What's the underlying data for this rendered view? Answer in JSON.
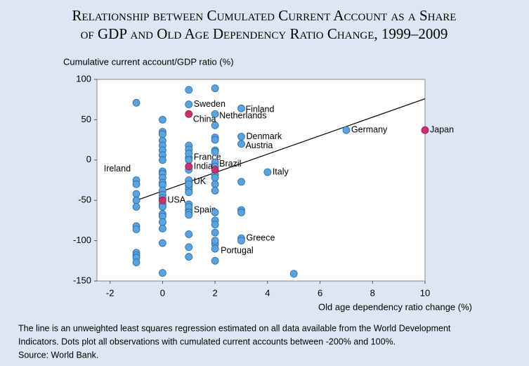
{
  "chart_data": {
    "type": "scatter",
    "title": [
      "Relationship between Cumulated Current Account as a Share",
      "of GDP and Old Age Dependency Ratio Change, 1999–2009"
    ],
    "y_label": "Cumulative current account/GDP ratio (%)",
    "x_label": "Old age dependency ratio change (%)",
    "note": [
      "The line is an unweighted least squares regression estimated on all data available from the World Development",
      "Indicators. Dots plot all observations with cumulated current accounts between -200% and 100%."
    ],
    "source": "Source: World Bank.",
    "xlim": [
      -2.5,
      10
    ],
    "xticks": [
      -2,
      0,
      2,
      4,
      6,
      8,
      10
    ],
    "ylim": [
      -150,
      100
    ],
    "yticks": [
      -150,
      -100,
      -50,
      0,
      50,
      100
    ],
    "series": [
      {
        "color": "#5aa3dc",
        "x": [
          1,
          3,
          2,
          7,
          3,
          3,
          1,
          -1,
          4,
          1,
          1,
          3,
          2,
          -1,
          -1,
          -1,
          -1,
          -1,
          -1,
          -1,
          -1,
          -1,
          -1,
          -1,
          0,
          0,
          0,
          0,
          0,
          0,
          0,
          0,
          0,
          0,
          0,
          0,
          0,
          0,
          0,
          0,
          0,
          0,
          0,
          0,
          0,
          0,
          0,
          0,
          1,
          1,
          1,
          1,
          1,
          1,
          1,
          1,
          1,
          1,
          1,
          1,
          1,
          1,
          1,
          1,
          1,
          1,
          2,
          2,
          2,
          2,
          2,
          2,
          2,
          2,
          2,
          2,
          2,
          2,
          2,
          2,
          2,
          2,
          2,
          2,
          2,
          3,
          3,
          3,
          3,
          5
        ],
        "values": [
          69,
          64,
          57,
          37,
          29,
          20,
          3,
          -25,
          -15,
          -27,
          -62,
          -97,
          -104,
          71,
          -30,
          -42,
          -50,
          -58,
          -82,
          -86,
          -115,
          -118,
          -121,
          -127,
          50,
          35,
          32,
          24,
          18,
          12,
          6,
          0,
          -14,
          -17,
          -22,
          -28,
          -31,
          -38,
          -43,
          -47,
          -55,
          -58,
          -67,
          -70,
          -77,
          -85,
          -103,
          -140,
          87,
          18,
          13,
          8,
          0,
          -12,
          -25,
          -32,
          -36,
          -40,
          -55,
          -58,
          -65,
          -68,
          -92,
          -108,
          -120,
          -30,
          89,
          43,
          28,
          25,
          12,
          10,
          -3,
          -8,
          -18,
          -22,
          -30,
          -38,
          -65,
          -75,
          -80,
          -90,
          -100,
          -110,
          -125,
          -27,
          -62,
          -65,
          -100,
          -141
        ],
        "labels": [
          "Sweden",
          "Finland",
          "Netherlands",
          "Germany",
          "Denmark",
          "Austria",
          "France",
          "Ireland",
          "Italy",
          "UK",
          "Spain",
          "Greece",
          "Portugal"
        ]
      },
      {
        "color": "#c8306e",
        "x": [
          1,
          10,
          1,
          2,
          0
        ],
        "values": [
          57,
          37,
          -8,
          -12,
          -50
        ],
        "labels": [
          "China",
          "Japan",
          "India",
          "Brazil",
          "USA"
        ]
      }
    ],
    "trend_line": {
      "color": "#000000",
      "x": [
        -1,
        10
      ],
      "values": [
        -50,
        76
      ]
    }
  }
}
